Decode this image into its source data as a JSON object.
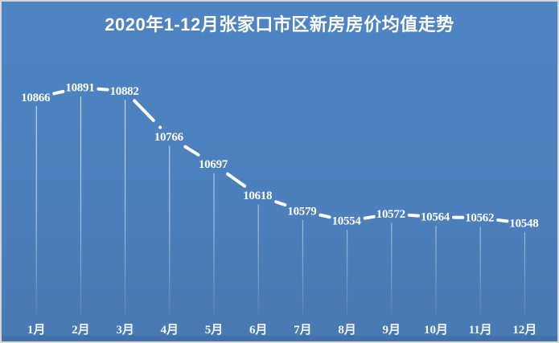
{
  "chart_data": {
    "type": "line",
    "title": "2020年1-12月张家口市区新房房价均值走势",
    "categories": [
      "1月",
      "2月",
      "3月",
      "4月",
      "5月",
      "6月",
      "7月",
      "8月",
      "9月",
      "10月",
      "11月",
      "12月"
    ],
    "values": [
      10866,
      10891,
      10882,
      10766,
      10697,
      10618,
      10579,
      10554,
      10572,
      10564,
      10562,
      10548
    ],
    "point_labels_visible": true,
    "xlabel": "",
    "ylabel": "",
    "ylim": [
      10548,
      10891
    ],
    "grid": false,
    "legend": false,
    "line_style": "dashed",
    "colors": {
      "line": "#ffffff",
      "point_label_text": "#ffffff",
      "axis_label_text": "#f2f7fc",
      "title_text": "#ffffff",
      "background_top": "#4e84c4",
      "background_bottom": "#4979b2",
      "bottom_band": "#4270a9",
      "outer_border": "#d5d5d5",
      "drop_line": "#ffffff"
    }
  }
}
